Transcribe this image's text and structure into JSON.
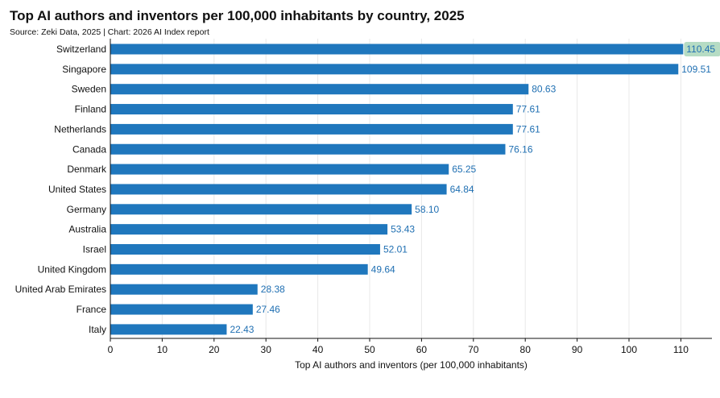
{
  "header": {
    "title": "Top AI authors and inventors per 100,000 inhabitants by country, 2025",
    "subtitle": "Source: Zeki Data, 2025 | Chart: 2026 AI Index report"
  },
  "colors": {
    "bar": "#1f77bd",
    "value_label": "#1f6fb2",
    "highlight_bg": "#b6dcc4",
    "highlight_text": "#2a7a5a"
  },
  "chart_data": {
    "type": "bar",
    "orientation": "horizontal",
    "title": "Top AI authors and inventors per 100,000 inhabitants by country, 2025",
    "subtitle": "Source: Zeki Data, 2025 | Chart: 2026 AI Index report",
    "xlabel": "Top AI authors and inventors (per 100,000 inhabitants)",
    "ylabel": "",
    "xlim": [
      0,
      116.5
    ],
    "xticks": [
      0,
      10,
      20,
      30,
      40,
      50,
      60,
      70,
      80,
      90,
      100,
      110
    ],
    "grid": true,
    "categories": [
      "Switzerland",
      "Singapore",
      "Sweden",
      "Finland",
      "Netherlands",
      "Canada",
      "Denmark",
      "United States",
      "Germany",
      "Australia",
      "Israel",
      "United Kingdom",
      "United Arab Emirates",
      "France",
      "Italy"
    ],
    "values": [
      110.45,
      109.51,
      80.63,
      77.61,
      77.61,
      76.16,
      65.25,
      64.84,
      58.1,
      53.43,
      52.01,
      49.64,
      28.38,
      27.46,
      22.43
    ],
    "value_labels": [
      "110.45",
      "109.51",
      "80.63",
      "77.61",
      "77.61",
      "76.16",
      "65.25",
      "64.84",
      "58.10",
      "53.43",
      "52.01",
      "49.64",
      "28.38",
      "27.46",
      "22.43"
    ],
    "highlighted_index": 0
  }
}
